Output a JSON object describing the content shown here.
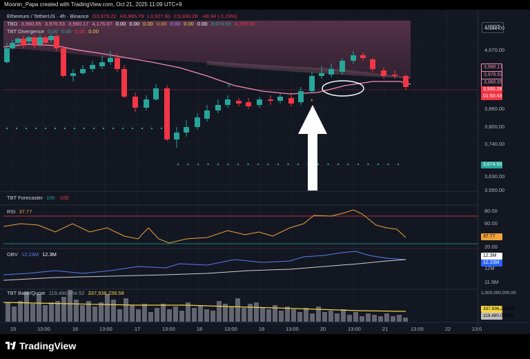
{
  "header": {
    "text": "Moonin_Papa created with TradingView.com, Oct 21, 2025 11:09 UTC+9"
  },
  "main_legend": {
    "symbol": "Ethereum / TetherUS · 4h · Binance",
    "ohlc": [
      "O3,979.22",
      "H3,985.76",
      "L3,927.60",
      "C3,930.28",
      "-48.94 (-1.23%)"
    ]
  },
  "tbo": {
    "name": "TBO",
    "values": [
      "3,960.65",
      "3,976.53",
      "3,990.17",
      "4,176.07",
      "0.00",
      "0.00",
      "0.00",
      "0.00",
      "0.00",
      "0.00",
      "0.00",
      "3,674.50",
      "4,755.00"
    ]
  },
  "tbt_div": {
    "name": "TBT Divergence",
    "values": [
      "0.00",
      "0.00",
      "0.00",
      "0.00"
    ]
  },
  "currency_button": "USDT",
  "price_axis": [
    "4,150.00",
    "4,070.00",
    "3,940.00",
    "3,860.00",
    "3,800.00",
    "3,740.00",
    "3,630.00",
    "3,590.00"
  ],
  "price_labels": [
    {
      "text": "3,990.17",
      "color": "#f48fb1",
      "border": true
    },
    {
      "text": "3,976.53",
      "color": "#f48fb1",
      "border": true
    },
    {
      "text": "3,960.65",
      "color": "#f48fb1",
      "border": true
    },
    {
      "text": "3,930.28",
      "color": "#f23645"
    },
    {
      "text": "01:50:43",
      "color": "#f23645"
    },
    {
      "text": "3,674.50",
      "color": "#26a69a"
    }
  ],
  "forecaster": {
    "name": "TBT Forecaster",
    "v1": "100",
    "v2": "-100"
  },
  "rsi": {
    "name": "RSI",
    "value": "37.77",
    "axis": [
      "80.00",
      "60.00",
      "20.00"
    ],
    "label": "37.77"
  },
  "obv": {
    "name": "OBV",
    "v1": "12.23M",
    "v2": "12.3M",
    "axis": [
      "12M",
      "11.5M"
    ],
    "labels": [
      "12.3M",
      "12.23M"
    ]
  },
  "basequote": {
    "name": "TBT Base/Quote",
    "v1": "119,480,054.52",
    "v2": "337,936,239.58",
    "axis": [
      "1,000,000,000.00"
    ],
    "labels": [
      "337,936,239.58",
      "119,480,054.52"
    ]
  },
  "time_axis": [
    "15",
    "13:00",
    "16",
    "13:00",
    "17",
    "13:00",
    "18",
    "13:00",
    "19",
    "13:00",
    "20",
    "13:00",
    "21",
    "13:00",
    "22",
    "13:0"
  ],
  "logo_text": "TradingView",
  "colors": {
    "up": "#26a69a",
    "down": "#f23645",
    "pink": "#f48fb1",
    "rsi": "#f0a33a",
    "obv": "#5b7df0",
    "yellow": "#f5d547"
  }
}
